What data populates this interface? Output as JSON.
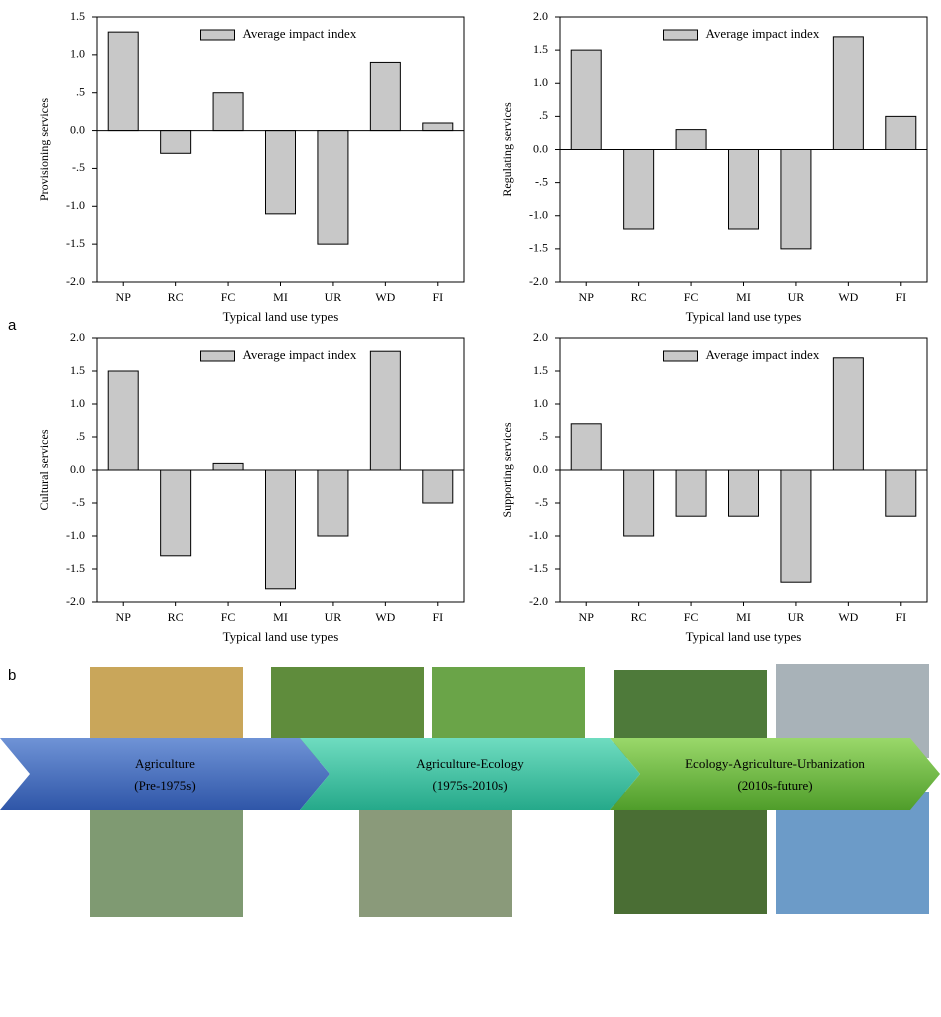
{
  "chart_data": [
    {
      "type": "bar",
      "ylabel": "Provisioning services",
      "xlabel": "Typical land use types",
      "categories": [
        "NP",
        "RC",
        "FC",
        "MI",
        "UR",
        "WD",
        "FI"
      ],
      "series": [
        {
          "name": "Average impact index",
          "color": "#c8c8c8",
          "values": [
            1.3,
            -0.3,
            0.5,
            -1.1,
            -1.5,
            0.9,
            0.1
          ]
        }
      ],
      "ylim": [
        -2,
        1.5
      ],
      "yticks": [
        {
          "value": -2,
          "label": "-2.0"
        },
        -1.5,
        {
          "value": -1,
          "label": "-1.0"
        },
        {
          "value": -0.5,
          "label": "-.5"
        },
        {
          "value": 0,
          "label": "0.0"
        },
        {
          "value": 0.5,
          "label": ".5"
        },
        {
          "value": 1,
          "label": "1.0"
        },
        1.5
      ],
      "legend": "upper center"
    },
    {
      "type": "bar",
      "ylabel": "Regulating services",
      "xlabel": "Typical land use types",
      "categories": [
        "NP",
        "RC",
        "FC",
        "MI",
        "UR",
        "WD",
        "FI"
      ],
      "series": [
        {
          "name": "Average impact index",
          "color": "#c8c8c8",
          "values": [
            1.5,
            -1.2,
            0.3,
            -1.2,
            -1.5,
            1.7,
            0.5
          ]
        }
      ],
      "ylim": [
        -2,
        2
      ],
      "yticks": [
        {
          "value": -2,
          "label": "-2.0"
        },
        -1.5,
        {
          "value": -1,
          "label": "-1.0"
        },
        {
          "value": -0.5,
          "label": "-.5"
        },
        {
          "value": 0,
          "label": "0.0"
        },
        {
          "value": 0.5,
          "label": ".5"
        },
        {
          "value": 1,
          "label": "1.0"
        },
        1.5,
        {
          "value": 2,
          "label": "2.0"
        }
      ],
      "legend": "upper center"
    },
    {
      "type": "bar",
      "ylabel": "Cultural  services",
      "xlabel": "Typical land use types",
      "categories": [
        "NP",
        "RC",
        "FC",
        "MI",
        "UR",
        "WD",
        "FI"
      ],
      "series": [
        {
          "name": "Average impact index",
          "color": "#c8c8c8",
          "values": [
            1.5,
            -1.3,
            0.1,
            -1.8,
            -1.0,
            1.8,
            -0.5
          ]
        }
      ],
      "ylim": [
        -2,
        2
      ],
      "yticks": [
        {
          "value": -2,
          "label": "-2.0"
        },
        -1.5,
        {
          "value": -1,
          "label": "-1.0"
        },
        {
          "value": -0.5,
          "label": "-.5"
        },
        {
          "value": 0,
          "label": "0.0"
        },
        {
          "value": 0.5,
          "label": ".5"
        },
        {
          "value": 1,
          "label": "1.0"
        },
        1.5,
        {
          "value": 2,
          "label": "2.0"
        }
      ],
      "legend": "upper center"
    },
    {
      "type": "bar",
      "ylabel": "Supporting services",
      "xlabel": "Typical land use types",
      "categories": [
        "NP",
        "RC",
        "FC",
        "MI",
        "UR",
        "WD",
        "FI"
      ],
      "series": [
        {
          "name": "Average impact index",
          "color": "#c8c8c8",
          "values": [
            0.7,
            -1.0,
            -0.7,
            -0.7,
            -1.7,
            1.7,
            -0.7
          ]
        }
      ],
      "ylim": [
        -2,
        2
      ],
      "yticks": [
        {
          "value": -2,
          "label": "-2.0"
        },
        -1.5,
        {
          "value": -1,
          "label": "-1.0"
        },
        {
          "value": -0.5,
          "label": "-.5"
        },
        {
          "value": 0,
          "label": "0.0"
        },
        {
          "value": 0.5,
          "label": ".5"
        },
        {
          "value": 1,
          "label": "1.0"
        },
        1.5,
        {
          "value": 2,
          "label": "2.0"
        }
      ],
      "legend": "upper center"
    }
  ],
  "panel_labels": [
    "a",
    "b"
  ],
  "timeline": [
    {
      "label": "Agriculture",
      "period": "(Pre-1975s)"
    },
    {
      "label": "Agriculture-Ecology",
      "period": "(1975s-2010s)"
    },
    {
      "label": "Ecology-Agriculture-Urbanization",
      "period": "(2010s-future)"
    }
  ]
}
